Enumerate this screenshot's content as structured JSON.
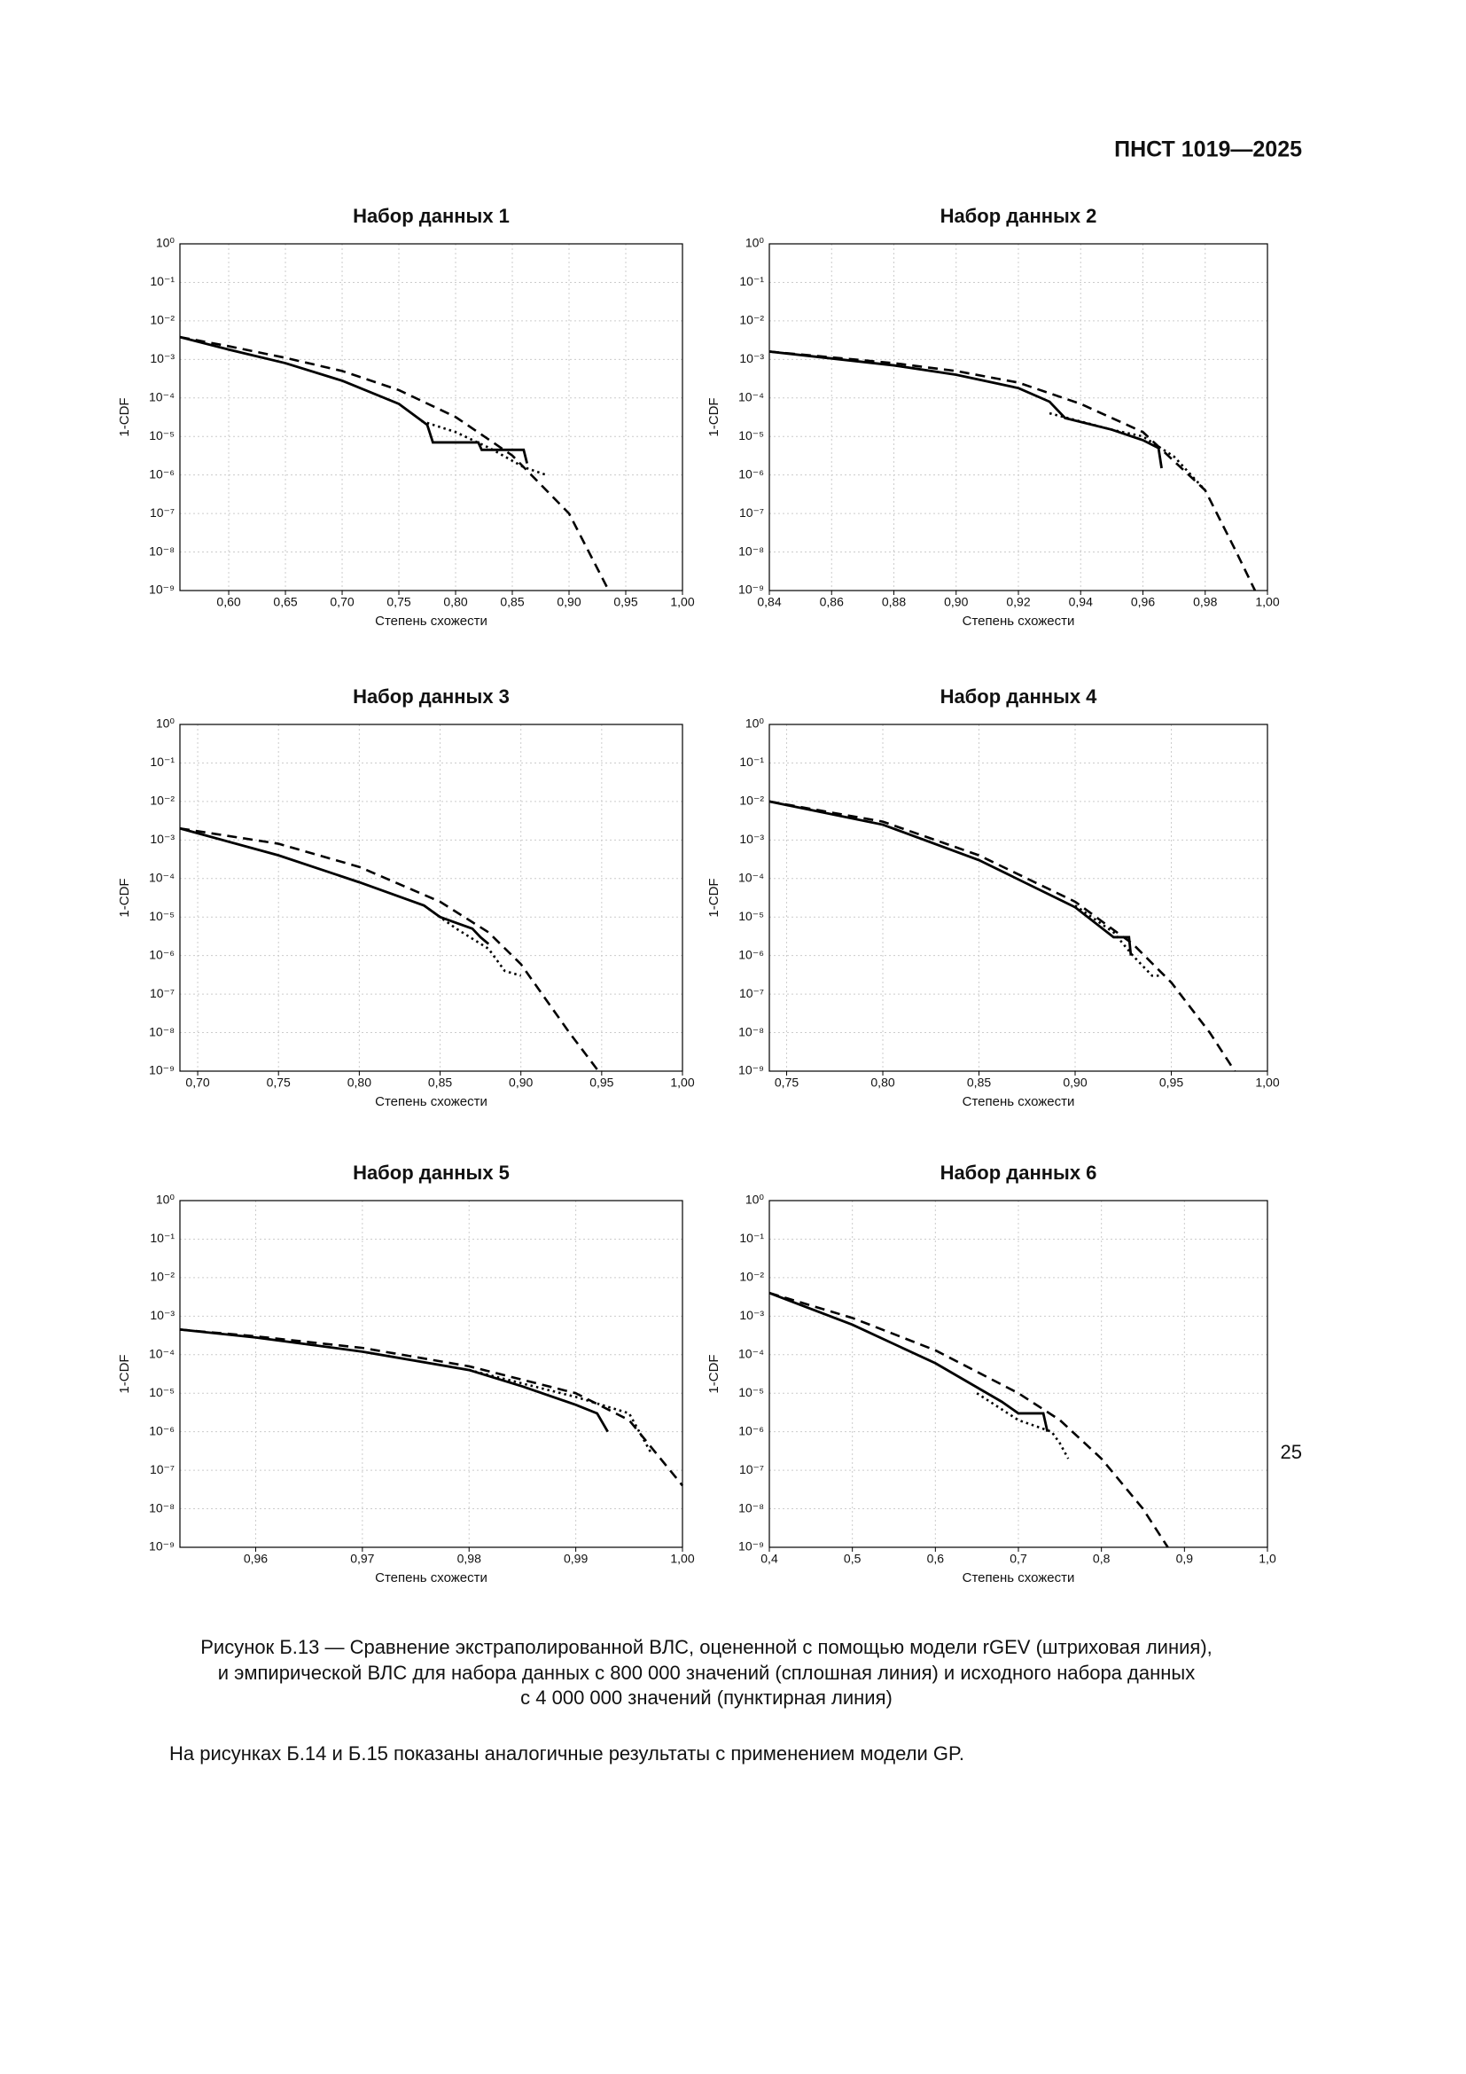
{
  "header": {
    "title": "ПНСТ 1019—2025"
  },
  "chart_data": [
    {
      "type": "line",
      "title": "Набор данных 1",
      "xlabel": "Степень схожести",
      "ylabel": "1-CDF",
      "ylog": true,
      "grid": true,
      "xlim": [
        0.557,
        1.0
      ],
      "ylim": [
        1e-09,
        1
      ],
      "xticks": [
        {
          "value": 0.6,
          "label": "0,60"
        },
        {
          "value": 0.65,
          "label": "0,65"
        },
        {
          "value": 0.7,
          "label": "0,70"
        },
        {
          "value": 0.75,
          "label": "0,75"
        },
        {
          "value": 0.8,
          "label": "0,80"
        },
        {
          "value": 0.85,
          "label": "0,85"
        },
        {
          "value": 0.9,
          "label": "0,90"
        },
        {
          "value": 0.95,
          "label": "0,95"
        },
        {
          "value": 1.0,
          "label": "1,00"
        }
      ],
      "yticks": [
        {
          "value": 1e-09,
          "label": "10⁻⁹"
        },
        {
          "value": 1e-08,
          "label": "10⁻⁸"
        },
        {
          "value": 1e-07,
          "label": "10⁻⁷"
        },
        {
          "value": 1e-06,
          "label": "10⁻⁶"
        },
        {
          "value": 1e-05,
          "label": "10⁻⁵"
        },
        {
          "value": 0.0001,
          "label": "10⁻⁴"
        },
        {
          "value": 0.001,
          "label": "10⁻³"
        },
        {
          "value": 0.01,
          "label": "10⁻²"
        },
        {
          "value": 0.1,
          "label": "10⁻¹"
        },
        {
          "value": 1,
          "label": "10⁰"
        }
      ],
      "series": [
        {
          "style": "dashed",
          "color": "#000000",
          "x": [
            0.557,
            0.6,
            0.65,
            0.7,
            0.75,
            0.8,
            0.85,
            0.9,
            0.935
          ],
          "values": [
            0.0038,
            0.0022,
            0.0011,
            0.0005,
            0.00016,
            3.2e-05,
            3.2e-06,
            1e-07,
            1e-09
          ]
        },
        {
          "style": "solid",
          "color": "#000000",
          "x": [
            0.557,
            0.6,
            0.65,
            0.7,
            0.75,
            0.775,
            0.78,
            0.82,
            0.823,
            0.86,
            0.863
          ],
          "values": [
            0.0038,
            0.0018,
            0.0008,
            0.00028,
            7e-05,
            2e-05,
            7e-06,
            7e-06,
            4.5e-06,
            4.5e-06,
            2e-06
          ]
        },
        {
          "style": "dotted",
          "color": "#000000",
          "x": [
            0.77,
            0.8,
            0.83,
            0.86,
            0.88
          ],
          "values": [
            2.5e-05,
            1.3e-05,
            5e-06,
            1.6e-06,
            1e-06
          ]
        }
      ]
    },
    {
      "type": "line",
      "title": "Набор данных 2",
      "xlabel": "Степень схожести",
      "ylabel": "1-CDF",
      "ylog": true,
      "grid": true,
      "xlim": [
        0.84,
        1.0
      ],
      "ylim": [
        1e-09,
        1
      ],
      "xticks": [
        {
          "value": 0.84,
          "label": "0,84"
        },
        {
          "value": 0.86,
          "label": "0,86"
        },
        {
          "value": 0.88,
          "label": "0,88"
        },
        {
          "value": 0.9,
          "label": "0,90"
        },
        {
          "value": 0.92,
          "label": "0,92"
        },
        {
          "value": 0.94,
          "label": "0,94"
        },
        {
          "value": 0.96,
          "label": "0,96"
        },
        {
          "value": 0.98,
          "label": "0,98"
        },
        {
          "value": 1.0,
          "label": "1,00"
        }
      ],
      "yticks": [
        {
          "value": 1e-09,
          "label": "10⁻⁹"
        },
        {
          "value": 1e-08,
          "label": "10⁻⁸"
        },
        {
          "value": 1e-07,
          "label": "10⁻⁷"
        },
        {
          "value": 1e-06,
          "label": "10⁻⁶"
        },
        {
          "value": 1e-05,
          "label": "10⁻⁵"
        },
        {
          "value": 0.0001,
          "label": "10⁻⁴"
        },
        {
          "value": 0.001,
          "label": "10⁻³"
        },
        {
          "value": 0.01,
          "label": "10⁻²"
        },
        {
          "value": 0.1,
          "label": "10⁻¹"
        },
        {
          "value": 1,
          "label": "10⁰"
        }
      ],
      "series": [
        {
          "style": "dashed",
          "color": "#000000",
          "x": [
            0.84,
            0.88,
            0.9,
            0.92,
            0.94,
            0.96,
            0.98,
            0.99,
            0.996
          ],
          "values": [
            0.0016,
            0.0008,
            0.0005,
            0.00025,
            7e-05,
            1.3e-05,
            4e-07,
            1e-08,
            1e-09
          ]
        },
        {
          "style": "solid",
          "color": "#000000",
          "x": [
            0.84,
            0.88,
            0.9,
            0.92,
            0.93,
            0.935,
            0.95,
            0.96,
            0.965,
            0.966
          ],
          "values": [
            0.0016,
            0.0007,
            0.0004,
            0.00018,
            8e-05,
            3e-05,
            1.5e-05,
            8e-06,
            5e-06,
            1.5e-06
          ]
        },
        {
          "style": "dotted",
          "color": "#000000",
          "x": [
            0.93,
            0.95,
            0.96,
            0.97,
            0.98
          ],
          "values": [
            4e-05,
            1.5e-05,
            1e-05,
            3e-06,
            4e-07
          ]
        }
      ]
    },
    {
      "type": "line",
      "title": "Набор данных 3",
      "xlabel": "Степень схожести",
      "ylabel": "1-CDF",
      "ylog": true,
      "grid": true,
      "xlim": [
        0.689,
        1.0
      ],
      "ylim": [
        1e-09,
        1
      ],
      "xticks": [
        {
          "value": 0.7,
          "label": "0,70"
        },
        {
          "value": 0.75,
          "label": "0,75"
        },
        {
          "value": 0.8,
          "label": "0,80"
        },
        {
          "value": 0.85,
          "label": "0,85"
        },
        {
          "value": 0.9,
          "label": "0,90"
        },
        {
          "value": 0.95,
          "label": "0,95"
        },
        {
          "value": 1.0,
          "label": "1,00"
        }
      ],
      "yticks": [
        {
          "value": 1e-09,
          "label": "10⁻⁹"
        },
        {
          "value": 1e-08,
          "label": "10⁻⁸"
        },
        {
          "value": 1e-07,
          "label": "10⁻⁷"
        },
        {
          "value": 1e-06,
          "label": "10⁻⁶"
        },
        {
          "value": 1e-05,
          "label": "10⁻⁵"
        },
        {
          "value": 0.0001,
          "label": "10⁻⁴"
        },
        {
          "value": 0.001,
          "label": "10⁻³"
        },
        {
          "value": 0.01,
          "label": "10⁻²"
        },
        {
          "value": 0.1,
          "label": "10⁻¹"
        },
        {
          "value": 1,
          "label": "10⁰"
        }
      ],
      "series": [
        {
          "style": "dashed",
          "color": "#000000",
          "x": [
            0.689,
            0.75,
            0.8,
            0.85,
            0.88,
            0.9,
            0.93,
            0.948
          ],
          "values": [
            0.002,
            0.0008,
            0.0002,
            2.5e-05,
            4e-06,
            6e-07,
            1e-08,
            1e-09
          ]
        },
        {
          "style": "solid",
          "color": "#000000",
          "x": [
            0.689,
            0.75,
            0.8,
            0.84,
            0.85,
            0.87,
            0.875,
            0.88
          ],
          "values": [
            0.002,
            0.0004,
            8e-05,
            2e-05,
            1e-05,
            5e-06,
            3e-06,
            2e-06
          ]
        },
        {
          "style": "dotted",
          "color": "#000000",
          "x": [
            0.84,
            0.86,
            0.88,
            0.89,
            0.9
          ],
          "values": [
            2e-05,
            5e-06,
            1.5e-06,
            4e-07,
            3e-07
          ]
        }
      ]
    },
    {
      "type": "line",
      "title": "Набор данных 4",
      "xlabel": "Степень схожести",
      "ylabel": "1-CDF",
      "ylog": true,
      "grid": true,
      "xlim": [
        0.741,
        1.0
      ],
      "ylim": [
        1e-09,
        1
      ],
      "xticks": [
        {
          "value": 0.75,
          "label": "0,75"
        },
        {
          "value": 0.8,
          "label": "0,80"
        },
        {
          "value": 0.85,
          "label": "0,85"
        },
        {
          "value": 0.9,
          "label": "0,90"
        },
        {
          "value": 0.95,
          "label": "0,95"
        },
        {
          "value": 1.0,
          "label": "1,00"
        }
      ],
      "yticks": [
        {
          "value": 1e-09,
          "label": "10⁻⁹"
        },
        {
          "value": 1e-08,
          "label": "10⁻⁸"
        },
        {
          "value": 1e-07,
          "label": "10⁻⁷"
        },
        {
          "value": 1e-06,
          "label": "10⁻⁶"
        },
        {
          "value": 1e-05,
          "label": "10⁻⁵"
        },
        {
          "value": 0.0001,
          "label": "10⁻⁴"
        },
        {
          "value": 0.001,
          "label": "10⁻³"
        },
        {
          "value": 0.01,
          "label": "10⁻²"
        },
        {
          "value": 0.1,
          "label": "10⁻¹"
        },
        {
          "value": 1,
          "label": "10⁰"
        }
      ],
      "series": [
        {
          "style": "dashed",
          "color": "#000000",
          "x": [
            0.741,
            0.8,
            0.85,
            0.9,
            0.93,
            0.95,
            0.97,
            0.983
          ],
          "values": [
            0.01,
            0.003,
            0.0004,
            2.5e-05,
            2e-06,
            2e-07,
            1e-08,
            1e-09
          ]
        },
        {
          "style": "solid",
          "color": "#000000",
          "x": [
            0.741,
            0.8,
            0.85,
            0.9,
            0.92,
            0.928,
            0.929
          ],
          "values": [
            0.01,
            0.0025,
            0.0003,
            1.8e-05,
            3e-06,
            3e-06,
            1e-06
          ]
        },
        {
          "style": "dotted",
          "color": "#000000",
          "x": [
            0.9,
            0.92,
            0.93,
            0.94,
            0.945
          ],
          "values": [
            2e-05,
            4e-06,
            1e-06,
            3e-07,
            3e-07
          ]
        }
      ]
    },
    {
      "type": "line",
      "title": "Набор данных 5",
      "xlabel": "Степень схожести",
      "ylabel": "1-CDF",
      "ylog": true,
      "grid": true,
      "xlim": [
        0.9529,
        1.0
      ],
      "ylim": [
        1e-09,
        1
      ],
      "xticks": [
        {
          "value": 0.96,
          "label": "0,96"
        },
        {
          "value": 0.97,
          "label": "0,97"
        },
        {
          "value": 0.98,
          "label": "0,98"
        },
        {
          "value": 0.99,
          "label": "0,99"
        },
        {
          "value": 1.0,
          "label": "1,00"
        }
      ],
      "yticks": [
        {
          "value": 1e-09,
          "label": "10⁻⁹"
        },
        {
          "value": 1e-08,
          "label": "10⁻⁸"
        },
        {
          "value": 1e-07,
          "label": "10⁻⁷"
        },
        {
          "value": 1e-06,
          "label": "10⁻⁶"
        },
        {
          "value": 1e-05,
          "label": "10⁻⁵"
        },
        {
          "value": 0.0001,
          "label": "10⁻⁴"
        },
        {
          "value": 0.001,
          "label": "10⁻³"
        },
        {
          "value": 0.01,
          "label": "10⁻²"
        },
        {
          "value": 0.1,
          "label": "10⁻¹"
        },
        {
          "value": 1,
          "label": "10⁰"
        }
      ],
      "series": [
        {
          "style": "dashed",
          "color": "#000000",
          "x": [
            0.9529,
            0.96,
            0.97,
            0.98,
            0.99,
            0.995,
            1.0
          ],
          "values": [
            0.00045,
            0.0003,
            0.00015,
            5e-05,
            1e-05,
            2e-06,
            4e-08
          ]
        },
        {
          "style": "solid",
          "color": "#000000",
          "x": [
            0.9529,
            0.96,
            0.97,
            0.98,
            0.985,
            0.99,
            0.992,
            0.993
          ],
          "values": [
            0.00045,
            0.00028,
            0.00012,
            4e-05,
            1.5e-05,
            5e-06,
            3e-06,
            1e-06
          ]
        },
        {
          "style": "dotted",
          "color": "#000000",
          "x": [
            0.98,
            0.99,
            0.995,
            0.997
          ],
          "values": [
            4e-05,
            8e-06,
            3e-06,
            3e-07
          ]
        }
      ]
    },
    {
      "type": "line",
      "title": "Набор данных 6",
      "xlabel": "Степень схожести",
      "ylabel": "1-CDF",
      "ylog": true,
      "grid": true,
      "xlim": [
        0.4,
        1.0
      ],
      "ylim": [
        1e-09,
        1
      ],
      "xticks": [
        {
          "value": 0.4,
          "label": "0,4"
        },
        {
          "value": 0.5,
          "label": "0,5"
        },
        {
          "value": 0.6,
          "label": "0,6"
        },
        {
          "value": 0.7,
          "label": "0,7"
        },
        {
          "value": 0.8,
          "label": "0,8"
        },
        {
          "value": 0.9,
          "label": "0,9"
        },
        {
          "value": 1.0,
          "label": "1,0"
        }
      ],
      "yticks": [
        {
          "value": 1e-09,
          "label": "10⁻⁹"
        },
        {
          "value": 1e-08,
          "label": "10⁻⁸"
        },
        {
          "value": 1e-07,
          "label": "10⁻⁷"
        },
        {
          "value": 1e-06,
          "label": "10⁻⁶"
        },
        {
          "value": 1e-05,
          "label": "10⁻⁵"
        },
        {
          "value": 0.0001,
          "label": "10⁻⁴"
        },
        {
          "value": 0.001,
          "label": "10⁻³"
        },
        {
          "value": 0.01,
          "label": "10⁻²"
        },
        {
          "value": 0.1,
          "label": "10⁻¹"
        },
        {
          "value": 1,
          "label": "10⁰"
        }
      ],
      "series": [
        {
          "style": "dashed",
          "color": "#000000",
          "x": [
            0.4,
            0.5,
            0.6,
            0.7,
            0.75,
            0.8,
            0.85,
            0.88
          ],
          "values": [
            0.004,
            0.0009,
            0.00013,
            1e-05,
            2e-06,
            2e-07,
            1e-08,
            1e-09
          ]
        },
        {
          "style": "solid",
          "color": "#000000",
          "x": [
            0.4,
            0.5,
            0.6,
            0.68,
            0.7,
            0.73,
            0.735
          ],
          "values": [
            0.004,
            0.0006,
            6e-05,
            6e-06,
            3e-06,
            3e-06,
            1e-06
          ]
        },
        {
          "style": "dotted",
          "color": "#000000",
          "x": [
            0.65,
            0.7,
            0.74,
            0.75,
            0.76
          ],
          "values": [
            1e-05,
            2e-06,
            1e-06,
            5e-07,
            2e-07
          ]
        }
      ]
    }
  ],
  "caption": [
    "Рисунок Б.13 — Сравнение экстраполированной ВЛС, оцененной с помощью модели rGEV (штриховая линия),",
    "и эмпирической ВЛС для набора данных с 800 000 значений (сплошная линия) и исходного набора данных",
    "с 4 000 000 значений (пунктирная линия)"
  ],
  "paragraph": "На рисунках Б.14 и Б.15 показаны аналогичные результаты с применением модели GP.",
  "page_number": "25"
}
